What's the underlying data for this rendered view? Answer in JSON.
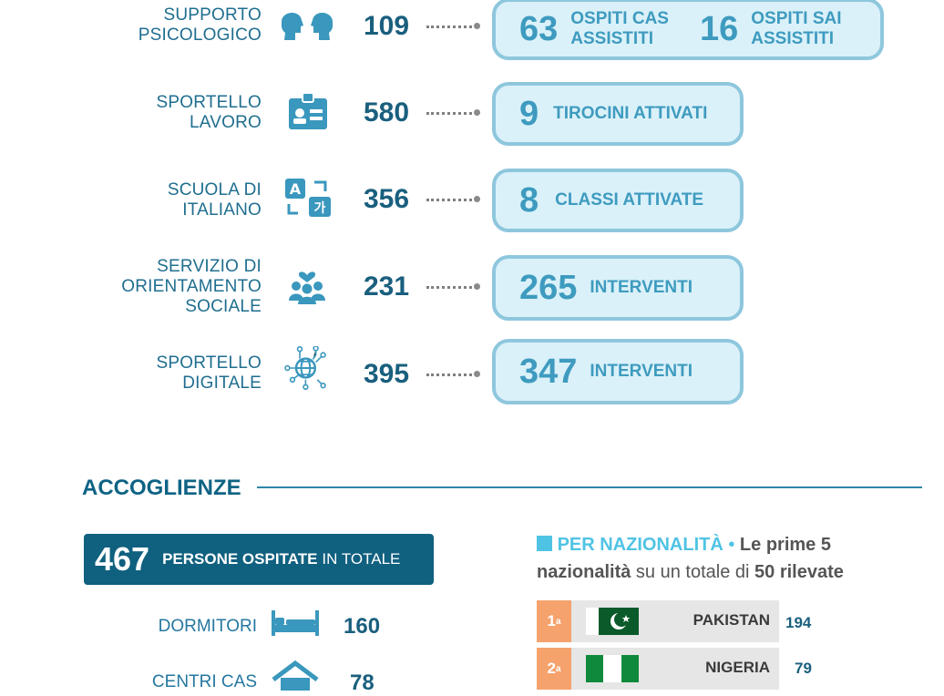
{
  "services": [
    {
      "label_lines": [
        "SUPPORTO",
        "PSICOLOGICO"
      ],
      "icon": "people-heads-icon",
      "value": "109",
      "outcomes": [
        {
          "num": "63",
          "text_lines": [
            "OSPITI CAS",
            "ASSISTITI"
          ]
        },
        {
          "num": "16",
          "text_lines": [
            "OSPITI SAI",
            "ASSISTITI"
          ]
        }
      ]
    },
    {
      "label_lines": [
        "SPORTELLO",
        "LAVORO"
      ],
      "icon": "id-badge-icon",
      "value": "580",
      "outcomes": [
        {
          "num": "9",
          "text_lines": [
            "TIROCINI ATTIVATI"
          ]
        }
      ]
    },
    {
      "label_lines": [
        "SCUOLA DI",
        "ITALIANO"
      ],
      "icon": "translate-icon",
      "value": "356",
      "outcomes": [
        {
          "num": "8",
          "text_lines": [
            "CLASSI ATTIVATE"
          ]
        }
      ]
    },
    {
      "label_lines": [
        "SERVIZIO DI",
        "ORIENTAMENTO",
        "SOCIALE"
      ],
      "icon": "community-heart-icon",
      "value": "231",
      "outcomes": [
        {
          "num": "265",
          "text_lines": [
            "INTERVENTI"
          ]
        }
      ]
    },
    {
      "label_lines": [
        "SPORTELLO",
        "DIGITALE"
      ],
      "icon": "globe-network-icon",
      "value": "395",
      "outcomes": [
        {
          "num": "347",
          "text_lines": [
            "INTERVENTI"
          ]
        }
      ]
    }
  ],
  "accoglienze": {
    "title": "ACCOGLIENZE",
    "total": {
      "num": "467",
      "strong": "PERSONE OSPITATE",
      "rest": "IN TOTALE"
    },
    "items": [
      {
        "label": "DORMITORI",
        "icon": "bed-icon",
        "value": "160"
      },
      {
        "label": "CENTRI CAS",
        "icon": "house-icon",
        "value": "78"
      }
    ]
  },
  "nazionalita": {
    "head": "PER NAZIONALITÀ",
    "bullet": "•",
    "line1_bold": "Le prime 5",
    "line2_bold": "nazionalità",
    "line2_mid": "su un totale di",
    "line2_bold2": "50 rilevate",
    "ranks": [
      {
        "rank": "1",
        "suffix": "a",
        "country": "PAKISTAN",
        "value": "194",
        "flag": "pakistan-flag-icon"
      },
      {
        "rank": "2",
        "suffix": "a",
        "country": "NIGERIA",
        "value": "79",
        "flag": "nigeria-flag-icon"
      }
    ]
  },
  "colors": {
    "primary": "#10607f",
    "accent": "#4fc3e4",
    "pill_border": "#8ec7dd",
    "pill_fill": "#daf1f9",
    "rank_badge": "#f5a26d"
  }
}
